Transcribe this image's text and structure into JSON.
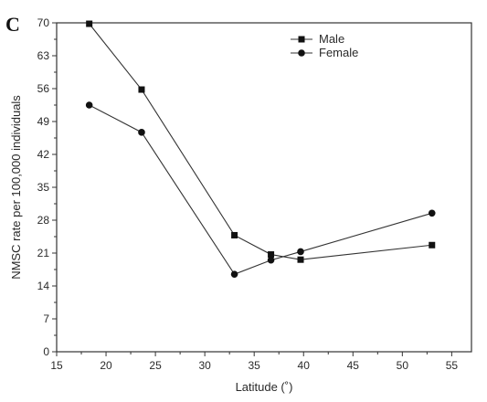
{
  "chart_data": {
    "type": "line",
    "panel_label": "C",
    "xlabel": "Latitude (˚)",
    "ylabel": "NMSC rate per 100,000 individuals",
    "xlim": [
      15,
      57
    ],
    "ylim": [
      0,
      70
    ],
    "xticks": [
      15,
      20,
      25,
      30,
      35,
      40,
      45,
      50,
      55
    ],
    "yticks": [
      0,
      7,
      14,
      21,
      28,
      35,
      42,
      49,
      56,
      63,
      70
    ],
    "legend_position": "top-right",
    "grid": false,
    "series": [
      {
        "name": "Male",
        "marker": "square",
        "x": [
          18.3,
          23.6,
          33.0,
          36.7,
          39.7,
          53.0
        ],
        "y": [
          69.8,
          55.8,
          24.8,
          20.7,
          19.6,
          22.7
        ]
      },
      {
        "name": "Female",
        "marker": "circle",
        "x": [
          18.3,
          23.6,
          33.0,
          36.7,
          39.7,
          53.0
        ],
        "y": [
          52.5,
          46.7,
          16.5,
          19.5,
          21.3,
          29.5
        ]
      }
    ]
  }
}
